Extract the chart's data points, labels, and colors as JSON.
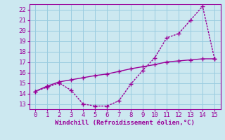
{
  "x": [
    0,
    1,
    2,
    3,
    4,
    5,
    6,
    7,
    8,
    9,
    10,
    11,
    12,
    13,
    14,
    15
  ],
  "y_windchill": [
    14.2,
    14.6,
    15.0,
    14.3,
    13.0,
    12.8,
    12.8,
    13.3,
    14.9,
    16.2,
    17.4,
    19.3,
    19.7,
    21.0,
    22.3,
    17.3
  ],
  "y_temp": [
    14.2,
    14.7,
    15.1,
    15.3,
    15.5,
    15.7,
    15.85,
    16.1,
    16.35,
    16.55,
    16.75,
    17.0,
    17.1,
    17.2,
    17.3,
    17.3
  ],
  "line_color": "#990099",
  "bg_color": "#cce8f0",
  "grid_color": "#99cce0",
  "xlabel": "Windchill (Refroidissement éolien,°C)",
  "xlim": [
    -0.5,
    15.5
  ],
  "ylim": [
    12.5,
    22.5
  ],
  "xticks": [
    0,
    1,
    2,
    3,
    4,
    5,
    6,
    7,
    8,
    9,
    10,
    11,
    12,
    13,
    14,
    15
  ],
  "yticks": [
    13,
    14,
    15,
    16,
    17,
    18,
    19,
    20,
    21,
    22
  ],
  "xlabel_fontsize": 6.5,
  "tick_fontsize": 6.5,
  "marker": "+",
  "markersize": 4,
  "linewidth": 1.0
}
